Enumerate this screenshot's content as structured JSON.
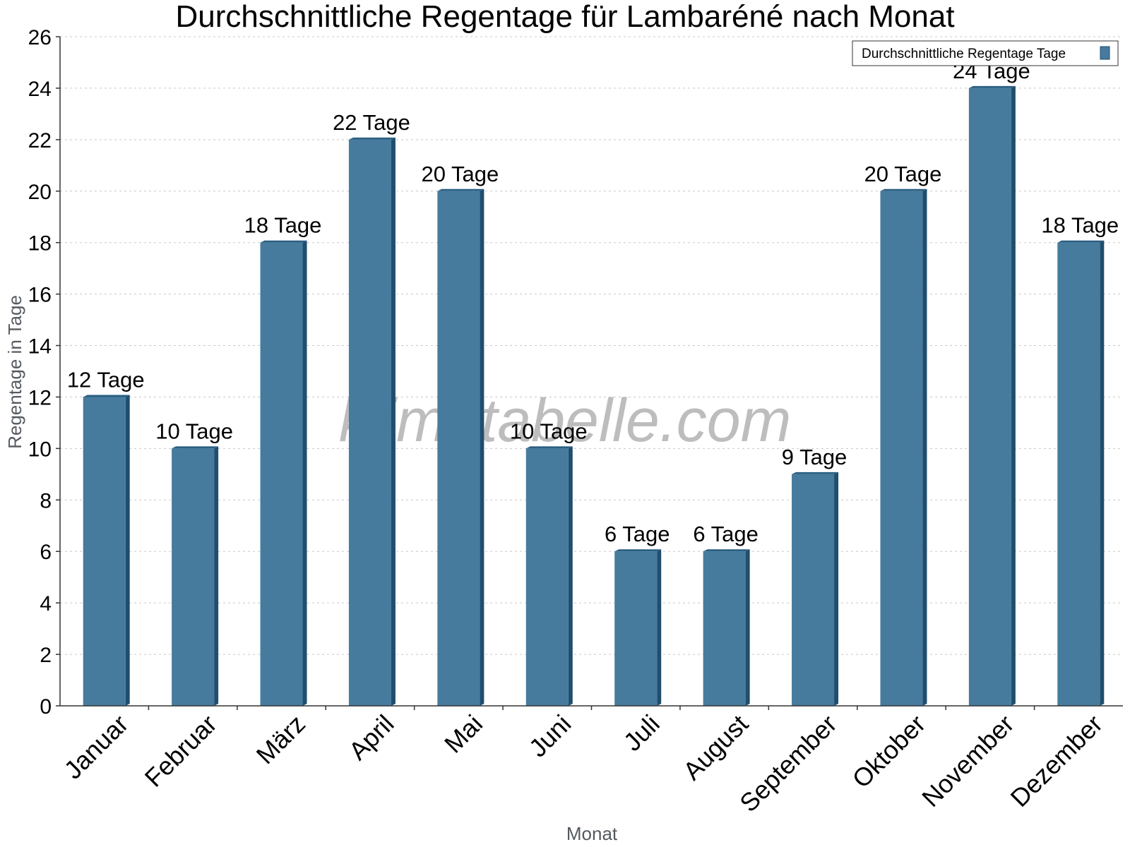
{
  "chart_data": {
    "type": "bar",
    "title": "Durchschnittliche Regentage für Lambaréné nach Monat",
    "xlabel": "Monat",
    "ylabel": "Regentage in Tage",
    "categories": [
      "Januar",
      "Februar",
      "März",
      "April",
      "Mai",
      "Juni",
      "Juli",
      "August",
      "September",
      "Oktober",
      "November",
      "Dezember"
    ],
    "series": [
      {
        "name": "Durchschnittliche Regentage Tage",
        "values": [
          12,
          10,
          18,
          22,
          20,
          10,
          6,
          6,
          9,
          20,
          24,
          18
        ],
        "labels": [
          "12 Tage",
          "10 Tage",
          "18 Tage",
          "22 Tage",
          "20 Tage",
          "10 Tage",
          "6 Tage",
          "6 Tage",
          "9 Tage",
          "20 Tage",
          "24 Tage",
          "18 Tage"
        ]
      }
    ],
    "ylim": [
      0,
      26
    ],
    "yticks": [
      "0",
      "2",
      "4",
      "6",
      "8",
      "10",
      "12",
      "14",
      "16",
      "18",
      "20",
      "22",
      "24",
      "26"
    ],
    "grid": true,
    "legend_position": "top-right",
    "colors": {
      "bar": "#467b9d",
      "bar_side": "#1f4e6e",
      "bar_top": "#2a5f82"
    }
  },
  "watermark": "klimatabelle.com"
}
